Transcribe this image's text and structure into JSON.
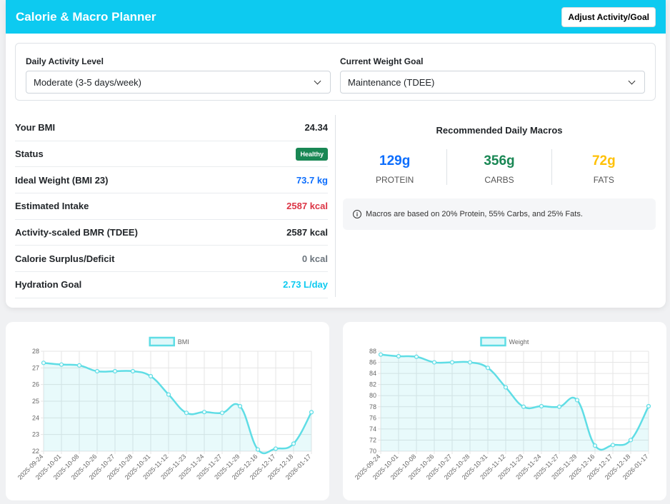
{
  "header": {
    "title": "Calorie & Macro Planner",
    "button": "Adjust Activity/Goal"
  },
  "activity": {
    "label": "Daily Activity Level",
    "value": "Moderate (3-5 days/week)"
  },
  "goal": {
    "label": "Current Weight Goal",
    "value": "Maintenance (TDEE)"
  },
  "stats": [
    {
      "label": "Your BMI",
      "value": "24.34",
      "color": "#212529"
    },
    {
      "label": "Status",
      "value": "Healthy",
      "color": "#198754",
      "badge": true
    },
    {
      "label": "Ideal Weight (BMI 23)",
      "value": "73.7 kg",
      "color": "#0d6efd"
    },
    {
      "label": "Estimated Intake",
      "value": "2587 kcal",
      "color": "#dc3545"
    },
    {
      "label": "Activity-scaled BMR (TDEE)",
      "value": "2587 kcal",
      "color": "#212529"
    },
    {
      "label": "Calorie Surplus/Deficit",
      "value": "0 kcal",
      "color": "#6c757d"
    },
    {
      "label": "Hydration Goal",
      "value": "2.73 L/day",
      "color": "#0dcaf0"
    }
  ],
  "macros": {
    "title": "Recommended Daily Macros",
    "items": [
      {
        "value": "129g",
        "name": "PROTEIN",
        "color": "#0d6efd"
      },
      {
        "value": "356g",
        "name": "CARBS",
        "color": "#198754"
      },
      {
        "value": "72g",
        "name": "FATS",
        "color": "#ffc107"
      }
    ],
    "note": "Macros are based on 20% Protein, 55% Carbs, and 25% Fats."
  },
  "chart_data": [
    {
      "type": "line",
      "x": [
        "2025-09-24",
        "2025-10-01",
        "2025-10-08",
        "2025-10-26",
        "2025-10-27",
        "2025-10-28",
        "2025-10-31",
        "2025-11-12",
        "2025-11-23",
        "2025-11-24",
        "2025-11-27",
        "2025-11-29",
        "2025-12-16",
        "2025-12-17",
        "2025-12-18",
        "2026-01-17"
      ],
      "series": [
        {
          "name": "BMI",
          "values": [
            27.3,
            27.2,
            27.15,
            26.8,
            26.8,
            26.8,
            26.5,
            25.4,
            24.3,
            24.35,
            24.3,
            24.7,
            22.1,
            22.15,
            22.45,
            24.34
          ]
        }
      ],
      "ylim": [
        22,
        28
      ],
      "yticks": [
        22,
        23,
        24,
        25,
        26,
        27,
        28
      ],
      "legend": "top-center",
      "color": "#5fdde5",
      "grid": true
    },
    {
      "type": "line",
      "x": [
        "2025-09-24",
        "2025-10-01",
        "2025-10-08",
        "2025-10-26",
        "2025-10-27",
        "2025-10-28",
        "2025-10-31",
        "2025-11-12",
        "2025-11-23",
        "2025-11-24",
        "2025-11-27",
        "2025-11-29",
        "2025-12-16",
        "2025-12-17",
        "2025-12-18",
        "2026-01-17"
      ],
      "series": [
        {
          "name": "Weight",
          "values": [
            87.4,
            87.1,
            87,
            86,
            86,
            86,
            85,
            81.5,
            78,
            78.1,
            78,
            79.2,
            71,
            71.1,
            72,
            78.1
          ]
        }
      ],
      "ylim": [
        70,
        88
      ],
      "yticks": [
        70,
        72,
        74,
        76,
        78,
        80,
        82,
        84,
        86,
        88
      ],
      "legend": "top-center",
      "color": "#5fdde5",
      "grid": true
    }
  ]
}
